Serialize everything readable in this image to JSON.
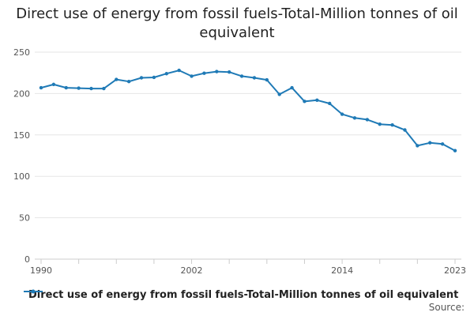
{
  "chart_data": {
    "type": "line",
    "title": "Direct use of energy from fossil fuels-Total-Million tonnes of oil equivalent",
    "xlabel": "",
    "ylabel": "",
    "ylim": [
      0,
      250
    ],
    "yticks": [
      0,
      50,
      100,
      150,
      200,
      250
    ],
    "xlim": [
      1990,
      2023
    ],
    "xtick_labels": [
      "1990",
      "2002",
      "2014",
      "2023"
    ],
    "grid": true,
    "legend_position": "bottom",
    "series": [
      {
        "name": "Direct use of energy from fossil fuels-Total-Million tonnes of oil equivalent",
        "color": "#1f7ab6",
        "x": [
          1990,
          1991,
          1992,
          1993,
          1994,
          1995,
          1996,
          1997,
          1998,
          1999,
          2000,
          2001,
          2002,
          2003,
          2004,
          2005,
          2006,
          2007,
          2008,
          2009,
          2010,
          2011,
          2012,
          2013,
          2014,
          2015,
          2016,
          2017,
          2018,
          2019,
          2020,
          2021,
          2022,
          2023
        ],
        "values": [
          207,
          211,
          207,
          206.5,
          206,
          206,
          217,
          214.5,
          219,
          219.5,
          224,
          228,
          221,
          224.5,
          226.5,
          226,
          221,
          219,
          216.5,
          199,
          207,
          190.5,
          192,
          188,
          175,
          170.5,
          168.5,
          163,
          162,
          156,
          137,
          140.5,
          139,
          131
        ]
      }
    ]
  },
  "source_label": "Source:"
}
